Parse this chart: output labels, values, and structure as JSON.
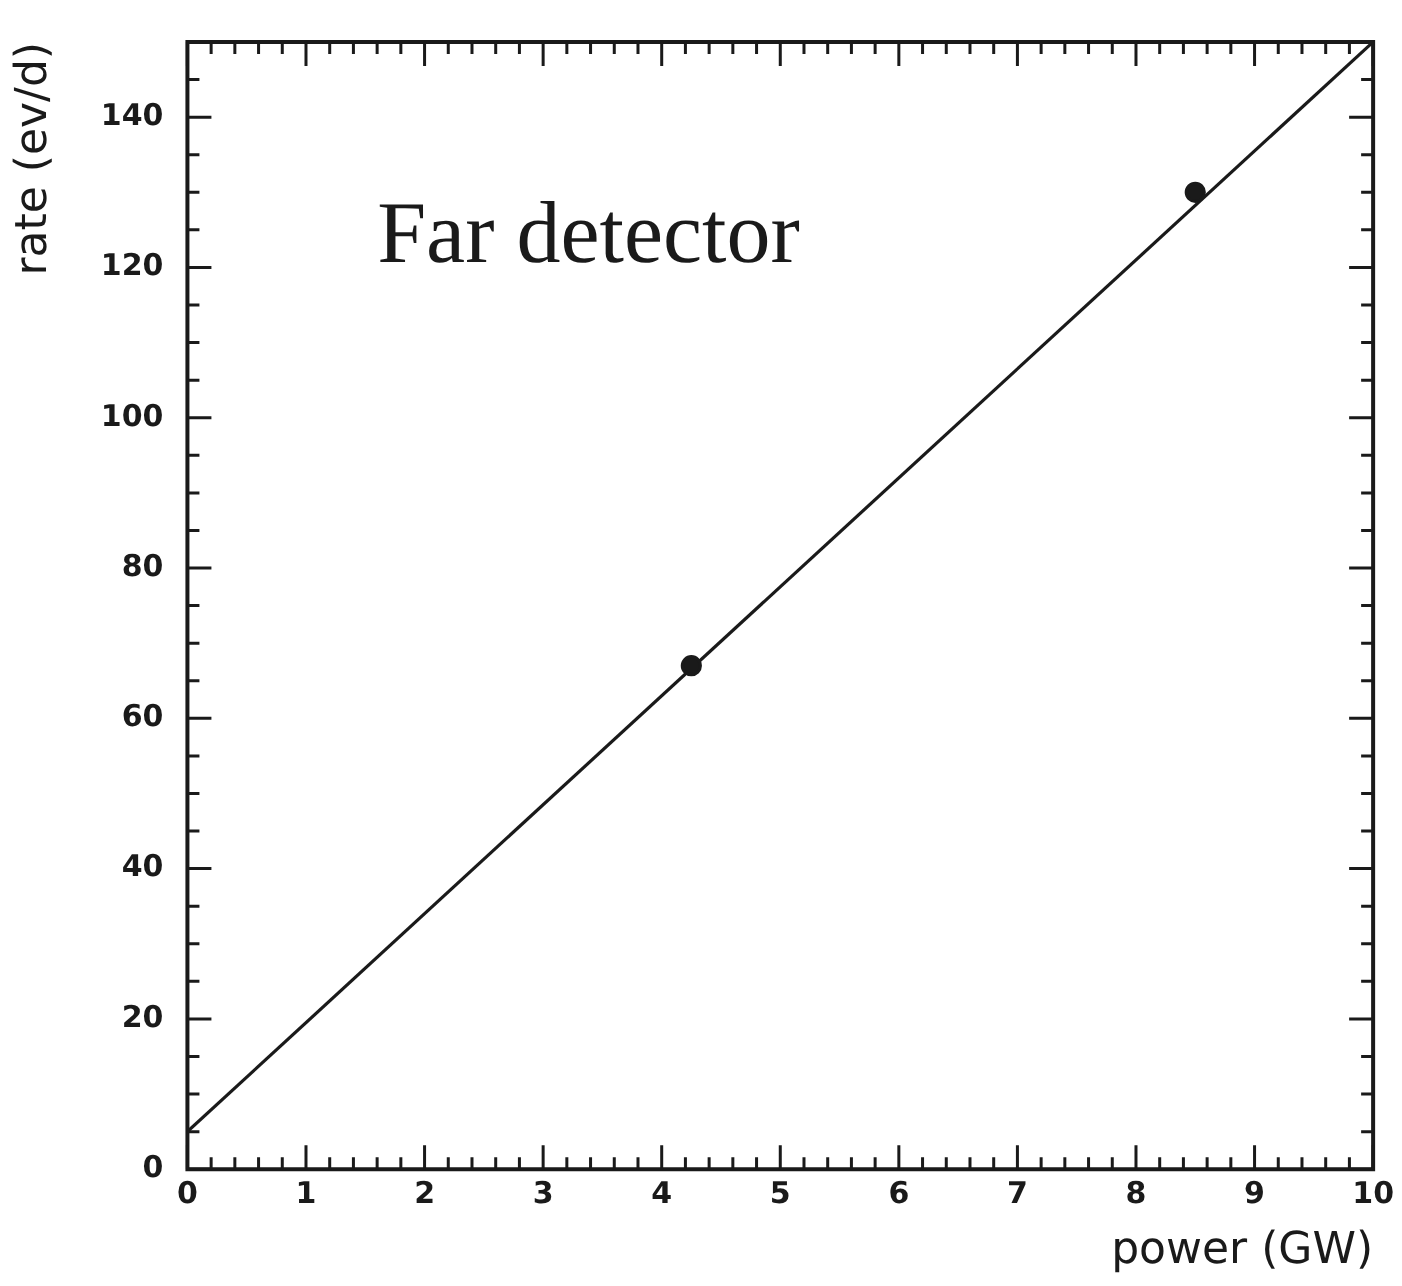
{
  "chart_data": {
    "type": "scatter",
    "xlabel": "power (GW)",
    "ylabel": "rate (ev/d)",
    "annotations": [
      "Far detector"
    ],
    "xlim": [
      0,
      10
    ],
    "ylim": [
      0,
      150
    ],
    "xticks": [
      0,
      {
        "value": 0.2,
        "label": null
      },
      {
        "value": 0.4,
        "label": null
      },
      {
        "value": 0.6,
        "label": null
      },
      {
        "value": 0.8,
        "label": null
      },
      1,
      {
        "value": 1.2,
        "label": null
      },
      {
        "value": 1.4,
        "label": null
      },
      {
        "value": 1.6,
        "label": null
      },
      {
        "value": 1.8,
        "label": null
      },
      2,
      {
        "value": 2.2,
        "label": null
      },
      {
        "value": 2.4,
        "label": null
      },
      {
        "value": 2.6,
        "label": null
      },
      {
        "value": 2.8,
        "label": null
      },
      3,
      {
        "value": 3.2,
        "label": null
      },
      {
        "value": 3.4,
        "label": null
      },
      {
        "value": 3.6,
        "label": null
      },
      {
        "value": 3.8,
        "label": null
      },
      4,
      {
        "value": 4.2,
        "label": null
      },
      {
        "value": 4.4,
        "label": null
      },
      {
        "value": 4.6,
        "label": null
      },
      {
        "value": 4.8,
        "label": null
      },
      5,
      {
        "value": 5.2,
        "label": null
      },
      {
        "value": 5.4,
        "label": null
      },
      {
        "value": 5.6,
        "label": null
      },
      {
        "value": 5.8,
        "label": null
      },
      6,
      {
        "value": 6.2,
        "label": null
      },
      {
        "value": 6.4,
        "label": null
      },
      {
        "value": 6.6,
        "label": null
      },
      {
        "value": 6.8,
        "label": null
      },
      7,
      {
        "value": 7.2,
        "label": null
      },
      {
        "value": 7.4,
        "label": null
      },
      {
        "value": 7.6,
        "label": null
      },
      {
        "value": 7.8,
        "label": null
      },
      8,
      {
        "value": 8.2,
        "label": null
      },
      {
        "value": 8.4,
        "label": null
      },
      {
        "value": 8.6,
        "label": null
      },
      {
        "value": 8.8,
        "label": null
      },
      9,
      {
        "value": 9.2,
        "label": null
      },
      {
        "value": 9.4,
        "label": null
      },
      {
        "value": 9.6,
        "label": null
      },
      {
        "value": 9.8,
        "label": null
      },
      10
    ],
    "yticks": [
      0,
      {
        "value": 5,
        "label": null
      },
      {
        "value": 10,
        "label": null
      },
      {
        "value": 15,
        "label": null
      },
      20,
      {
        "value": 25,
        "label": null
      },
      {
        "value": 30,
        "label": null
      },
      {
        "value": 35,
        "label": null
      },
      40,
      {
        "value": 45,
        "label": null
      },
      {
        "value": 50,
        "label": null
      },
      {
        "value": 55,
        "label": null
      },
      60,
      {
        "value": 65,
        "label": null
      },
      {
        "value": 70,
        "label": null
      },
      {
        "value": 75,
        "label": null
      },
      80,
      {
        "value": 85,
        "label": null
      },
      {
        "value": 90,
        "label": null
      },
      {
        "value": 95,
        "label": null
      },
      100,
      {
        "value": 105,
        "label": null
      },
      {
        "value": 110,
        "label": null
      },
      {
        "value": 115,
        "label": null
      },
      120,
      {
        "value": 125,
        "label": null
      },
      {
        "value": 130,
        "label": null
      },
      {
        "value": 135,
        "label": null
      },
      140,
      {
        "value": 145,
        "label": null
      },
      {
        "value": 150,
        "label": null
      }
    ],
    "grid": false,
    "legend": false,
    "series": [
      {
        "x": [
          4.25,
          8.5
        ],
        "values": [
          67,
          130
        ],
        "color": "#1a1a1a",
        "marker": "circle"
      },
      {
        "type": "line",
        "x": [
          0,
          10
        ],
        "values": [
          5,
          150
        ],
        "color": "#1a1a1a",
        "marker": "none",
        "line_style": "solid"
      }
    ]
  }
}
